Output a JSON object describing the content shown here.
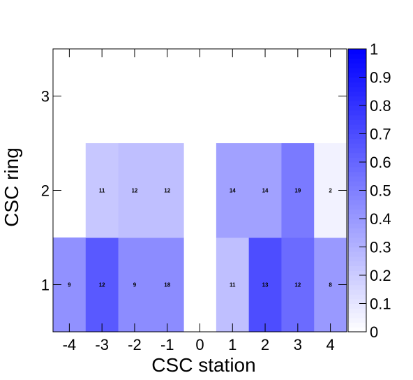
{
  "chart_data": {
    "type": "heatmap",
    "title": "",
    "xlabel": "CSC station",
    "ylabel": "CSC ring",
    "x_categories": [
      "-4",
      "-3",
      "-2",
      "-1",
      "0",
      "1",
      "2",
      "3",
      "4"
    ],
    "y_categories": [
      "1",
      "2",
      "3"
    ],
    "cells": [
      {
        "x": "-4",
        "y": "1",
        "value": 0.43,
        "label": "9"
      },
      {
        "x": "-3",
        "y": "1",
        "value": 0.65,
        "label": "12"
      },
      {
        "x": "-2",
        "y": "1",
        "value": 0.45,
        "label": "9"
      },
      {
        "x": "-1",
        "y": "1",
        "value": 0.45,
        "label": "18"
      },
      {
        "x": "1",
        "y": "1",
        "value": 0.25,
        "label": "11"
      },
      {
        "x": "2",
        "y": "1",
        "value": 0.7,
        "label": "13"
      },
      {
        "x": "3",
        "y": "1",
        "value": 0.58,
        "label": "12"
      },
      {
        "x": "4",
        "y": "1",
        "value": 0.4,
        "label": "8"
      },
      {
        "x": "-3",
        "y": "2",
        "value": 0.22,
        "label": "11"
      },
      {
        "x": "-2",
        "y": "2",
        "value": 0.25,
        "label": "12"
      },
      {
        "x": "-1",
        "y": "2",
        "value": 0.25,
        "label": "12"
      },
      {
        "x": "1",
        "y": "2",
        "value": 0.37,
        "label": "14"
      },
      {
        "x": "2",
        "y": "2",
        "value": 0.37,
        "label": "14"
      },
      {
        "x": "3",
        "y": "2",
        "value": 0.52,
        "label": "19"
      },
      {
        "x": "4",
        "y": "2",
        "value": 0.05,
        "label": "2"
      }
    ],
    "colorbar": {
      "range": [
        0,
        1
      ],
      "ticks": [
        "0",
        "0.1",
        "0.2",
        "0.3",
        "0.4",
        "0.5",
        "0.6",
        "0.7",
        "0.8",
        "0.9",
        "1"
      ],
      "color_min": "#ffffff",
      "color_max": "#0000ff"
    },
    "grid": false
  }
}
